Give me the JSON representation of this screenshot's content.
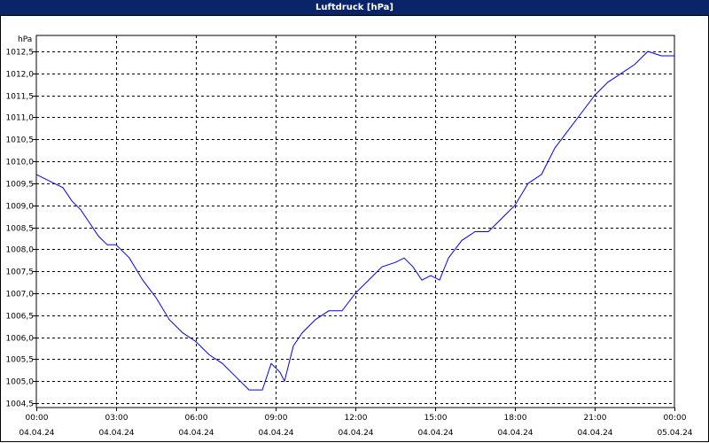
{
  "window": {
    "title": "Luftdruck [hPa]"
  },
  "colors": {
    "titlebar": "#0a246a",
    "series": "#0000ff",
    "grid": "#000000"
  },
  "chart_data": {
    "type": "line",
    "title": "Luftdruck [hPa]",
    "ylabel": "hPa",
    "ylim": [
      1004.5,
      1012.5
    ],
    "yticks": [
      "1004,5",
      "1005,0",
      "1005,5",
      "1006,0",
      "1006,5",
      "1007,0",
      "1007,5",
      "1008,0",
      "1008,5",
      "1009,0",
      "1009,5",
      "1010,0",
      "1010,5",
      "1011,0",
      "1011,5",
      "1012,0",
      "1012,5"
    ],
    "xticks": [
      {
        "time": "00:00",
        "date": "04.04.24"
      },
      {
        "time": "03:00",
        "date": "04.04.24"
      },
      {
        "time": "06:00",
        "date": "04.04.24"
      },
      {
        "time": "09:00",
        "date": "04.04.24"
      },
      {
        "time": "12:00",
        "date": "04.04.24"
      },
      {
        "time": "15:00",
        "date": "04.04.24"
      },
      {
        "time": "18:00",
        "date": "04.04.24"
      },
      {
        "time": "21:00",
        "date": "04.04.24"
      },
      {
        "time": "00:00",
        "date": "05.04.24"
      }
    ],
    "grid": true,
    "series": [
      {
        "x": [
          "04.04.24 00:00",
          "04.04.24 00:20",
          "04.04.24 00:40",
          "04.04.24 01:00",
          "04.04.24 01:20",
          "04.04.24 01:40",
          "04.04.24 02:00",
          "04.04.24 02:20",
          "04.04.24 02:40",
          "04.04.24 03:00",
          "04.04.24 03:30",
          "04.04.24 04:00",
          "04.04.24 04:30",
          "04.04.24 05:00",
          "04.04.24 05:30",
          "04.04.24 06:00",
          "04.04.24 06:30",
          "04.04.24 07:00",
          "04.04.24 07:30",
          "04.04.24 08:00",
          "04.04.24 08:30",
          "04.04.24 08:50",
          "04.04.24 09:10",
          "04.04.24 09:20",
          "04.04.24 09:40",
          "04.04.24 10:00",
          "04.04.24 10:30",
          "04.04.24 11:00",
          "04.04.24 11:30",
          "04.04.24 12:00",
          "04.04.24 12:30",
          "04.04.24 13:00",
          "04.04.24 13:30",
          "04.04.24 13:50",
          "04.04.24 14:10",
          "04.04.24 14:30",
          "04.04.24 14:50",
          "04.04.24 15:10",
          "04.04.24 15:30",
          "04.04.24 16:00",
          "04.04.24 16:30",
          "04.04.24 17:00",
          "04.04.24 17:30",
          "04.04.24 18:00",
          "04.04.24 18:30",
          "04.04.24 19:00",
          "04.04.24 19:30",
          "04.04.24 20:00",
          "04.04.24 20:30",
          "04.04.24 21:00",
          "04.04.24 21:30",
          "04.04.24 22:00",
          "04.04.24 22:30",
          "04.04.24 23:00",
          "04.04.24 23:30",
          "05.04.24 00:00"
        ],
        "y": [
          1009.7,
          1009.6,
          1009.5,
          1009.4,
          1009.1,
          1008.9,
          1008.6,
          1008.3,
          1008.1,
          1008.1,
          1007.8,
          1007.3,
          1006.9,
          1006.4,
          1006.1,
          1005.9,
          1005.6,
          1005.4,
          1005.1,
          1004.8,
          1004.8,
          1005.4,
          1005.2,
          1005.0,
          1005.8,
          1006.1,
          1006.4,
          1006.6,
          1006.6,
          1007.0,
          1007.3,
          1007.6,
          1007.7,
          1007.8,
          1007.6,
          1007.3,
          1007.4,
          1007.3,
          1007.8,
          1008.2,
          1008.4,
          1008.4,
          1008.7,
          1009.0,
          1009.5,
          1009.7,
          1010.3,
          1010.7,
          1011.1,
          1011.5,
          1011.8,
          1012.0,
          1012.2,
          1012.5,
          1012.4,
          1012.4
        ]
      }
    ]
  }
}
